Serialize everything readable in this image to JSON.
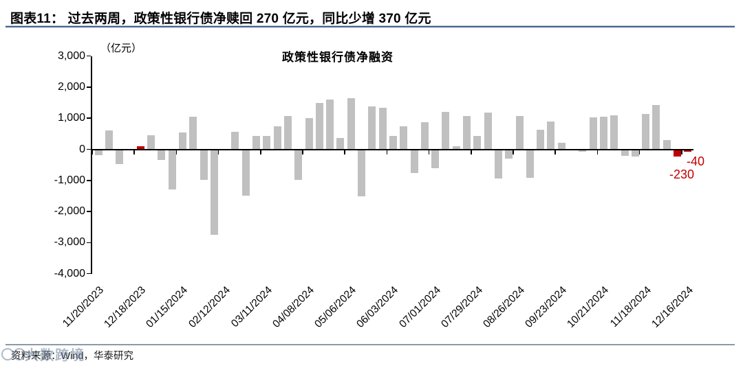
{
  "header": {
    "title": "图表11：  过去两周，政策性银行债净赎回 270 亿元，同比少增 370 亿元"
  },
  "footer": {
    "source": "资料来源：Wind，华泰研究",
    "watermark": "大数跨境"
  },
  "chart_data": {
    "type": "bar",
    "title": "政策性银行债净融资",
    "unit_label": "（亿元）",
    "xlabel": "",
    "ylabel": "",
    "ylim": [
      -4000,
      3000
    ],
    "ytick_step": 1000,
    "grid": false,
    "legend": "none",
    "bar_color": "#c0c0c0",
    "highlight_color": "#c00000",
    "annotation_color": "#c00000",
    "ytick_labels": [
      "3,000",
      "2,000",
      "1,000",
      "0",
      "-1,000",
      "-2,000",
      "-3,000",
      "-4,000"
    ],
    "ytick_values": [
      3000,
      2000,
      1000,
      0,
      -1000,
      -2000,
      -3000,
      -4000
    ],
    "xtick_labels": [
      "11/20/2023",
      "12/18/2023",
      "01/15/2024",
      "02/12/2024",
      "03/11/2024",
      "04/08/2024",
      "05/06/2024",
      "06/03/2024",
      "07/01/2024",
      "07/29/2024",
      "08/26/2024",
      "09/23/2024",
      "10/21/2024",
      "11/18/2024",
      "12/16/2024"
    ],
    "x": [
      "11/20/2023",
      "11/27/2023",
      "12/04/2023",
      "12/11/2023",
      "12/18/2023",
      "12/25/2023",
      "01/01/2024",
      "01/08/2024",
      "01/15/2024",
      "01/22/2024",
      "01/29/2024",
      "02/05/2024",
      "02/12/2024",
      "02/19/2024",
      "02/26/2024",
      "03/04/2024",
      "03/11/2024",
      "03/18/2024",
      "03/25/2024",
      "04/01/2024",
      "04/08/2024",
      "04/15/2024",
      "04/22/2024",
      "04/29/2024",
      "05/06/2024",
      "05/13/2024",
      "05/20/2024",
      "05/27/2024",
      "06/03/2024",
      "06/10/2024",
      "06/17/2024",
      "06/24/2024",
      "07/01/2024",
      "07/08/2024",
      "07/15/2024",
      "07/22/2024",
      "07/29/2024",
      "08/05/2024",
      "08/12/2024",
      "08/19/2024",
      "08/26/2024",
      "09/02/2024",
      "09/09/2024",
      "09/16/2024",
      "09/23/2024",
      "09/30/2024",
      "10/07/2024",
      "10/14/2024",
      "10/21/2024",
      "10/28/2024",
      "11/04/2024",
      "11/11/2024",
      "11/18/2024",
      "11/25/2024",
      "12/02/2024",
      "12/09/2024",
      "12/16/2024"
    ],
    "values": [
      -190,
      600,
      -480,
      0,
      90,
      450,
      -350,
      -1300,
      530,
      1040,
      -980,
      -2750,
      0,
      570,
      -1500,
      420,
      420,
      740,
      1080,
      -980,
      1000,
      1490,
      1600,
      370,
      1640,
      -1520,
      1390,
      1330,
      420,
      740,
      -770,
      880,
      -610,
      1200,
      110,
      1060,
      430,
      1170,
      -930,
      -290,
      1080,
      -920,
      620,
      890,
      210,
      0,
      -80,
      1030,
      1050,
      1100,
      -200,
      -230,
      1130,
      1420,
      300,
      -230,
      -40
    ],
    "highlight_indices": [
      3,
      4,
      55,
      56
    ],
    "annotations": [
      {
        "text": "-40",
        "index": 56
      },
      {
        "text": "-230",
        "index": 55
      }
    ]
  }
}
